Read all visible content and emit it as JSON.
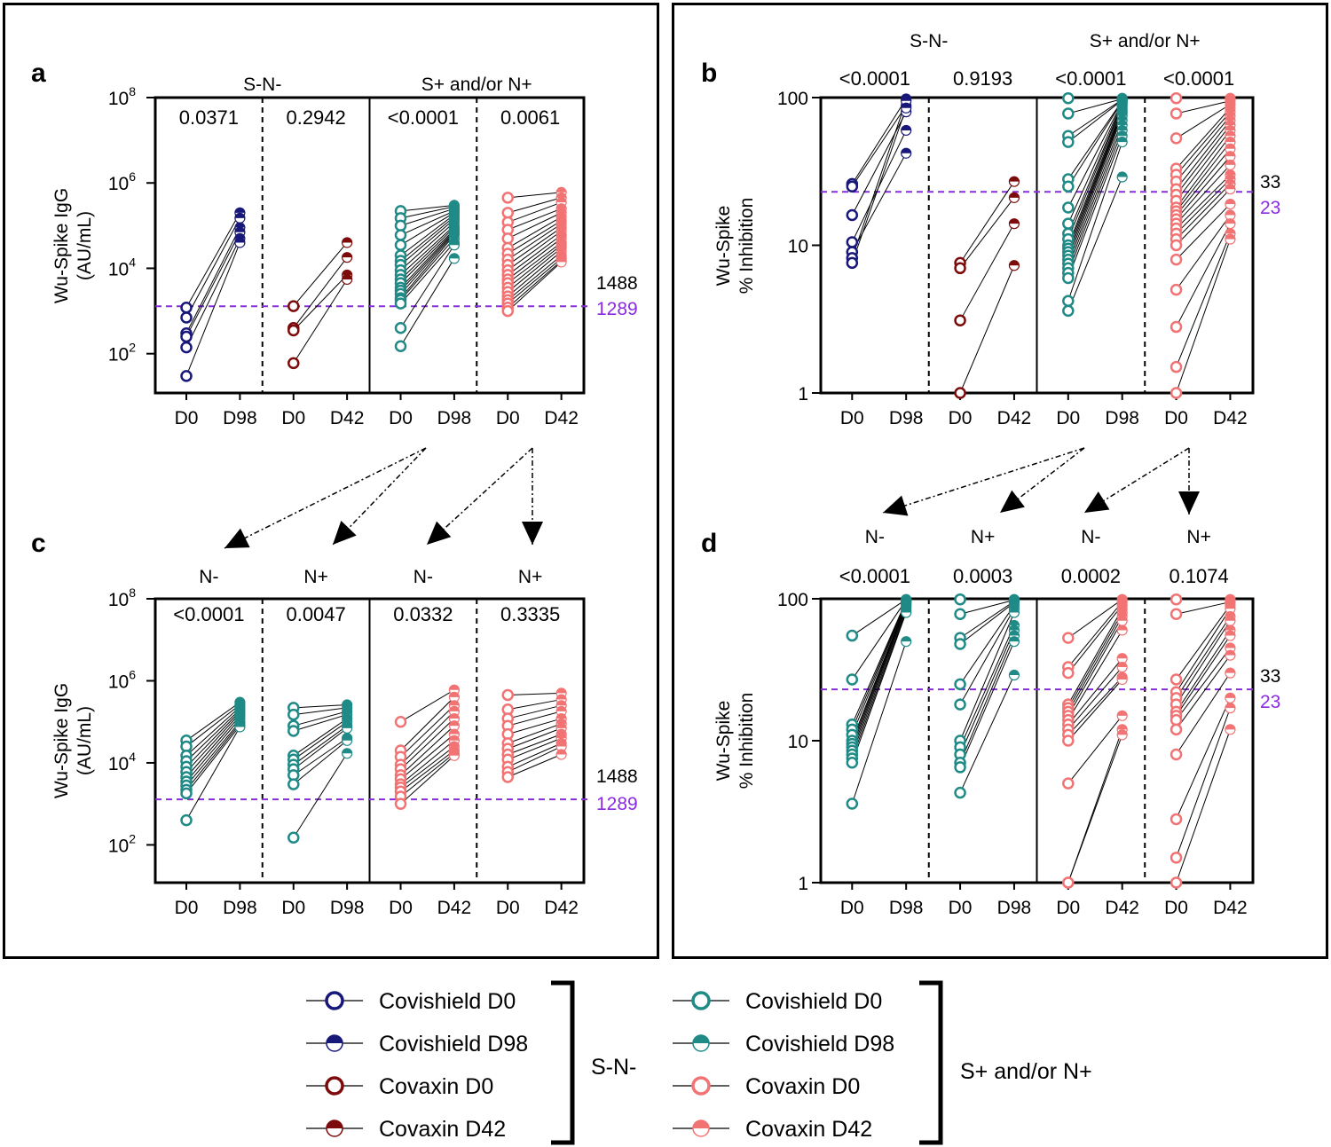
{
  "colors": {
    "covishield_sn": "#18187a",
    "covaxin_sn": "#7d0b0b",
    "covishield_pos": "#1f8a86",
    "covaxin_pos": "#f27373",
    "cutoff": "#8a2be2",
    "text_gray": "#333333"
  },
  "chart_data": [
    {
      "id": "a",
      "panel_letter": "a",
      "type": "scatter",
      "scale": "log",
      "ylabel": [
        "Wu-Spike IgG",
        "(AU/mL)"
      ],
      "yticks": [
        {
          "value": 100,
          "base": "10",
          "exp": "2"
        },
        {
          "value": 10000,
          "base": "10",
          "exp": "4"
        },
        {
          "value": 1000000,
          "base": "10",
          "exp": "6"
        },
        {
          "value": 100000000,
          "base": "10",
          "exp": "8"
        }
      ],
      "ylim": [
        12,
        100000000
      ],
      "cutoff": 1289,
      "cutoff_labels": {
        "upper": "1488",
        "lower": "1289"
      },
      "pvalues_inside": true,
      "group_labels": [
        "S-N-",
        "S+ and/or N+"
      ],
      "groups": [
        {
          "label": "S-N-",
          "pair_index": [
            0,
            1
          ]
        },
        {
          "label": "S+ and/or N+",
          "pair_index": [
            2,
            3
          ]
        }
      ],
      "pairs": [
        {
          "x_labels": [
            "D0",
            "D98"
          ],
          "p": "0.0371",
          "color_key": "covishield_sn",
          "d0": [
            1200,
            700,
            300,
            250,
            140,
            30
          ],
          "d1": [
            200000,
            150000,
            90000,
            70000,
            50000,
            40000
          ]
        },
        {
          "x_labels": [
            "D0",
            "D42"
          ],
          "p": "0.2942",
          "color_key": "covaxin_sn",
          "d0": [
            1300,
            400,
            350,
            60
          ],
          "d1": [
            40000,
            18000,
            7000,
            5500
          ]
        },
        {
          "x_labels": [
            "D0",
            "D98"
          ],
          "p": "<0.0001",
          "color_key": "covishield_pos",
          "d0": [
            220000,
            150000,
            100000,
            60000,
            35000,
            20000,
            15000,
            12000,
            9000,
            7000,
            5500,
            4500,
            3500,
            3000,
            2500,
            2000,
            1800,
            1500,
            400,
            150
          ],
          "d1": [
            300000,
            280000,
            250000,
            220000,
            200000,
            180000,
            160000,
            140000,
            120000,
            100000,
            90000,
            80000,
            75000,
            70000,
            65000,
            60000,
            50000,
            40000,
            35000,
            17000
          ]
        },
        {
          "x_labels": [
            "D0",
            "D42"
          ],
          "p": "0.0061",
          "color_key": "covaxin_pos",
          "d0": [
            450000,
            200000,
            120000,
            80000,
            50000,
            30000,
            22000,
            16000,
            12000,
            9000,
            7000,
            5500,
            4500,
            3500,
            2800,
            2200,
            1800,
            1500,
            1200,
            1000
          ],
          "d1": [
            600000,
            450000,
            350000,
            250000,
            200000,
            160000,
            130000,
            110000,
            90000,
            75000,
            60000,
            50000,
            40000,
            35000,
            30000,
            25000,
            20000,
            17000,
            15000,
            14000
          ]
        }
      ],
      "x_label_text": [
        "D0",
        "D98",
        "D0",
        "D42",
        "D0",
        "D98",
        "D0",
        "D42"
      ]
    },
    {
      "id": "b",
      "panel_letter": "b",
      "type": "scatter",
      "scale": "log",
      "ylabel": [
        "Wu-Spike",
        "% Inhibition"
      ],
      "yticks": [
        {
          "value": 1,
          "label": "1"
        },
        {
          "value": 10,
          "label": "10"
        },
        {
          "value": 100,
          "label": "100"
        }
      ],
      "ylim": [
        1,
        100
      ],
      "cutoff": 23,
      "cutoff_labels": {
        "upper": "33",
        "lower": "23"
      },
      "pvalues_inside": false,
      "group_labels": [
        "S-N-",
        "S+ and/or N+"
      ],
      "pairs": [
        {
          "x_labels": [
            "D0",
            "D98"
          ],
          "p": "<0.0001",
          "color_key": "covishield_sn",
          "d0": [
            26,
            25,
            16,
            10.5,
            9,
            8.2,
            7.6
          ],
          "d1": [
            98,
            88,
            80,
            60,
            42,
            95,
            85
          ]
        },
        {
          "x_labels": [
            "D0",
            "D42"
          ],
          "p": "0.9193",
          "color_key": "covaxin_sn",
          "d0": [
            7.6,
            7,
            3.1,
            1
          ],
          "d1": [
            27,
            21,
            14,
            7.3
          ]
        },
        {
          "x_labels": [
            "D0",
            "D98"
          ],
          "p": "<0.0001",
          "color_key": "covishield_pos",
          "d0": [
            99,
            78,
            55,
            50,
            28,
            25,
            18,
            14,
            12,
            11,
            10,
            9.5,
            9,
            8.5,
            8,
            7.5,
            7,
            6.5,
            6,
            4.2,
            3.6
          ],
          "d1": [
            99,
            98,
            97,
            96,
            95,
            94,
            93,
            92,
            90,
            88,
            85,
            82,
            80,
            78,
            75,
            70,
            65,
            60,
            55,
            50,
            29
          ]
        },
        {
          "x_labels": [
            "D0",
            "D42"
          ],
          "p": "<0.0001",
          "color_key": "covaxin_pos",
          "d0": [
            99,
            78,
            53,
            33,
            30,
            27,
            24,
            22,
            20,
            18,
            17,
            16,
            15,
            14,
            13,
            12,
            11,
            10,
            8,
            5,
            2.8,
            1.5,
            1
          ],
          "d1": [
            99,
            95,
            90,
            85,
            80,
            75,
            70,
            65,
            60,
            55,
            50,
            45,
            40,
            35,
            30,
            28,
            26,
            24,
            19,
            16,
            14,
            12,
            11
          ]
        }
      ]
    },
    {
      "id": "c",
      "panel_letter": "c",
      "type": "scatter",
      "scale": "log",
      "ylabel": [
        "Wu-Spike IgG",
        "(AU/mL)"
      ],
      "yticks": [
        {
          "value": 100,
          "base": "10",
          "exp": "2"
        },
        {
          "value": 10000,
          "base": "10",
          "exp": "4"
        },
        {
          "value": 1000000,
          "base": "10",
          "exp": "6"
        },
        {
          "value": 100000000,
          "base": "10",
          "exp": "8"
        }
      ],
      "ylim": [
        12,
        100000000
      ],
      "cutoff": 1289,
      "cutoff_labels": {
        "upper": "1488",
        "lower": "1289"
      },
      "pvalues_inside": true,
      "group_labels": [
        "N-",
        "N+",
        "N-",
        "N+"
      ],
      "pairs": [
        {
          "x_labels": [
            "D0",
            "D98"
          ],
          "p": "<0.0001",
          "color_key": "covishield_pos",
          "d0": [
            35000,
            25000,
            15000,
            11000,
            8000,
            6000,
            4500,
            3500,
            2800,
            2200,
            1800,
            400
          ],
          "d1": [
            300000,
            260000,
            230000,
            200000,
            180000,
            160000,
            140000,
            120000,
            100000,
            90000,
            80000,
            75000
          ]
        },
        {
          "x_labels": [
            "D0",
            "D98"
          ],
          "p": "0.0047",
          "color_key": "covishield_pos",
          "d0": [
            220000,
            150000,
            80000,
            60000,
            15000,
            12000,
            9000,
            7000,
            5000,
            3000,
            150
          ],
          "d1": [
            260000,
            220000,
            180000,
            150000,
            120000,
            100000,
            80000,
            70000,
            40000,
            35000,
            17000
          ]
        },
        {
          "x_labels": [
            "D0",
            "D42"
          ],
          "p": "0.0332",
          "color_key": "covaxin_pos",
          "d0": [
            100000,
            20000,
            14000,
            9000,
            7000,
            5000,
            4000,
            3000,
            2500,
            2000,
            1500,
            1000
          ],
          "d1": [
            600000,
            400000,
            250000,
            180000,
            120000,
            80000,
            50000,
            35000,
            25000,
            20000,
            17000,
            15000
          ]
        },
        {
          "x_labels": [
            "D0",
            "D42"
          ],
          "p": "0.3335",
          "color_key": "covaxin_pos",
          "d0": [
            450000,
            200000,
            120000,
            80000,
            50000,
            30000,
            22000,
            16000,
            12000,
            8000,
            6000,
            4500
          ],
          "d1": [
            500000,
            350000,
            250000,
            180000,
            120000,
            90000,
            70000,
            50000,
            40000,
            30000,
            25000,
            16000
          ]
        }
      ]
    },
    {
      "id": "d",
      "panel_letter": "d",
      "type": "scatter",
      "scale": "log",
      "ylabel": [
        "Wu-Spike",
        "% Inhibition"
      ],
      "yticks": [
        {
          "value": 1,
          "label": "1"
        },
        {
          "value": 10,
          "label": "10"
        },
        {
          "value": 100,
          "label": "100"
        }
      ],
      "ylim": [
        1,
        100
      ],
      "cutoff": 23,
      "cutoff_labels": {
        "upper": "33",
        "lower": "23"
      },
      "pvalues_inside": false,
      "group_labels": [
        "N-",
        "N+",
        "N-",
        "N+"
      ],
      "pairs": [
        {
          "x_labels": [
            "D0",
            "D98"
          ],
          "p": "<0.0001",
          "color_key": "covishield_pos",
          "d0": [
            55,
            27,
            13,
            12,
            11,
            10,
            9.5,
            9,
            8.5,
            8,
            7.5,
            7,
            3.6
          ],
          "d1": [
            99,
            98,
            97,
            96,
            95,
            93,
            92,
            90,
            88,
            85,
            82,
            80,
            50
          ]
        },
        {
          "x_labels": [
            "D0",
            "D98"
          ],
          "p": "0.0003",
          "color_key": "covishield_pos",
          "d0": [
            99,
            78,
            53,
            48,
            25,
            18,
            10,
            9,
            8,
            7,
            6.5,
            4.3
          ],
          "d1": [
            99,
            98,
            96,
            94,
            90,
            85,
            80,
            65,
            60,
            55,
            50,
            29
          ]
        },
        {
          "x_labels": [
            "D0",
            "D42"
          ],
          "p": "0.0002",
          "color_key": "covaxin_pos",
          "d0": [
            53,
            33,
            30,
            18,
            17,
            16,
            15,
            14,
            13,
            12,
            11,
            10,
            5,
            1,
            1
          ],
          "d1": [
            99,
            95,
            90,
            85,
            80,
            75,
            70,
            60,
            38,
            33,
            28,
            27,
            15,
            12,
            11
          ]
        },
        {
          "x_labels": [
            "D0",
            "D42"
          ],
          "p": "0.1074",
          "color_key": "covaxin_pos",
          "d0": [
            99,
            78,
            27,
            22,
            20,
            18,
            16,
            15,
            14,
            12,
            8,
            2.8,
            1.5,
            1
          ],
          "d1": [
            99,
            95,
            90,
            85,
            75,
            70,
            60,
            55,
            45,
            40,
            30,
            20,
            17,
            12
          ]
        }
      ]
    }
  ],
  "legend": {
    "left_group": "S-N-",
    "right_group": "S+ and/or N+",
    "left_items": [
      {
        "label": "Covishield D0",
        "color_key": "covishield_sn",
        "style": "open"
      },
      {
        "label": "Covishield D98",
        "color_key": "covishield_sn",
        "style": "half"
      },
      {
        "label": "Covaxin D0",
        "color_key": "covaxin_sn",
        "style": "open"
      },
      {
        "label": "Covaxin D42",
        "color_key": "covaxin_sn",
        "style": "half"
      }
    ],
    "right_items": [
      {
        "label": "Covishield D0",
        "color_key": "covishield_pos",
        "style": "open"
      },
      {
        "label": "Covishield D98",
        "color_key": "covishield_pos",
        "style": "half"
      },
      {
        "label": "Covaxin D0",
        "color_key": "covaxin_pos",
        "style": "open"
      },
      {
        "label": "Covaxin D42",
        "color_key": "covaxin_pos",
        "style": "half"
      }
    ]
  }
}
